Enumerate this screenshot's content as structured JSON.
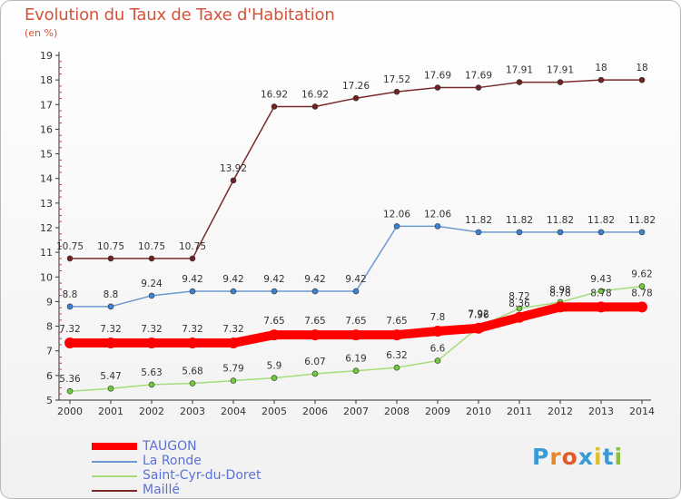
{
  "title": "Evolution du Taux de Taxe d'Habitation",
  "subtitle": "(en %)",
  "colors": {
    "title": "#d2543a",
    "axis": "#333333",
    "grid_tick": "#d23a3a",
    "legend_text": "#5a72d8"
  },
  "chart_data": {
    "type": "line",
    "x": [
      "2000",
      "2001",
      "2002",
      "2003",
      "2004",
      "2005",
      "2006",
      "2007",
      "2008",
      "2009",
      "2010",
      "2011",
      "2012",
      "2013",
      "2014"
    ],
    "ylim": [
      5,
      19
    ],
    "yticks": [
      5,
      6,
      7,
      8,
      9,
      10,
      11,
      12,
      13,
      14,
      15,
      16,
      17,
      18,
      19
    ],
    "grid": false,
    "legend_position": "bottom-left",
    "series": [
      {
        "name": "TAUGON",
        "color": "#ff0000",
        "style": "thick",
        "values": [
          7.32,
          7.32,
          7.32,
          7.32,
          7.32,
          7.65,
          7.65,
          7.65,
          7.65,
          7.8,
          7.92,
          8.36,
          8.78,
          8.78,
          8.78
        ],
        "labels": [
          "7.32",
          "7.32",
          "7.32",
          "7.32",
          "7.32",
          "7.65",
          "7.65",
          "7.65",
          "7.65",
          "7.8",
          "7.92",
          "8.36",
          "8.78",
          "8.78",
          "8.78"
        ]
      },
      {
        "name": "La Ronde",
        "color": "#6a9ad0",
        "marker": "#3a82d6",
        "values": [
          8.8,
          8.8,
          9.24,
          9.42,
          9.42,
          9.42,
          9.42,
          9.42,
          12.06,
          12.06,
          11.82,
          11.82,
          11.82,
          11.82,
          11.82
        ],
        "labels": [
          "8.8",
          "8.8",
          "9.24",
          "9.42",
          "9.42",
          "9.42",
          "9.42",
          "9.42",
          "12.06",
          "12.06",
          "11.82",
          "11.82",
          "11.82",
          "11.82",
          "11.82"
        ]
      },
      {
        "name": "Saint-Cyr-du-Doret",
        "color": "#a6dc7a",
        "marker": "#6ecb3c",
        "values": [
          5.36,
          5.47,
          5.63,
          5.68,
          5.79,
          5.9,
          6.07,
          6.19,
          6.32,
          6.6,
          7.96,
          8.72,
          8.98,
          9.43,
          9.62
        ],
        "labels": [
          "5.36",
          "5.47",
          "5.63",
          "5.68",
          "5.79",
          "5.9",
          "6.07",
          "6.19",
          "6.32",
          "6.6",
          "7.96",
          "8.72",
          "8.98",
          "9.43",
          "9.62"
        ]
      },
      {
        "name": "Maillé",
        "color": "#7a2a2a",
        "marker": "#6e2222",
        "values": [
          10.75,
          10.75,
          10.75,
          10.75,
          13.92,
          16.92,
          16.92,
          17.26,
          17.52,
          17.69,
          17.69,
          17.91,
          17.91,
          18,
          18
        ],
        "labels": [
          "10.75",
          "10.75",
          "10.75",
          "10.75",
          "13.92",
          "16.92",
          "16.92",
          "17.26",
          "17.52",
          "17.69",
          "17.69",
          "17.91",
          "17.91",
          "18",
          "18"
        ]
      }
    ]
  },
  "legend": [
    {
      "label": "TAUGON",
      "color": "#ff0000",
      "thick": true
    },
    {
      "label": "La Ronde",
      "color": "#6a9ad0",
      "thick": false
    },
    {
      "label": "Saint-Cyr-du-Doret",
      "color": "#a6dc7a",
      "thick": false
    },
    {
      "label": "Maillé",
      "color": "#7a2a2a",
      "thick": false
    }
  ],
  "logo": {
    "letters": [
      "P",
      "r",
      "o",
      "x",
      "i",
      "t",
      "i"
    ],
    "colors": [
      "#3a9ad6",
      "#e08a2a",
      "#e05a2a",
      "#3a9ad6",
      "#e0c02a",
      "#3a9ad6",
      "#8ac03a"
    ]
  }
}
